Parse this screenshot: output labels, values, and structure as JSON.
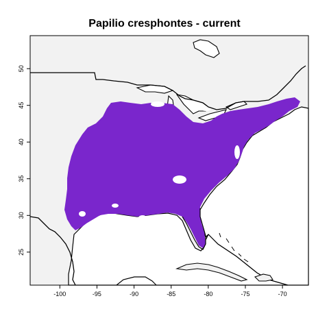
{
  "map": {
    "title": "Papilio cresphontes - current",
    "colors": {
      "background": "#f2f2f2",
      "range": "#7a26cc",
      "outline": "#000000",
      "water": "#ffffff"
    },
    "x_axis": {
      "ticks": [
        {
          "value": -100,
          "label": "-100"
        },
        {
          "value": -95,
          "label": "-95"
        },
        {
          "value": -90,
          "label": "-90"
        },
        {
          "value": -85,
          "label": "-85"
        },
        {
          "value": -80,
          "label": "-80"
        },
        {
          "value": -75,
          "label": "-75"
        },
        {
          "value": -70,
          "label": "-70"
        }
      ],
      "range": [
        -104,
        -66.5
      ]
    },
    "y_axis": {
      "ticks": [
        {
          "value": 25,
          "label": "25"
        },
        {
          "value": 30,
          "label": "30"
        },
        {
          "value": 35,
          "label": "35"
        },
        {
          "value": 40,
          "label": "40"
        },
        {
          "value": 45,
          "label": "45"
        },
        {
          "value": 50,
          "label": "50"
        }
      ],
      "range": [
        20.5,
        54.5
      ]
    }
  }
}
